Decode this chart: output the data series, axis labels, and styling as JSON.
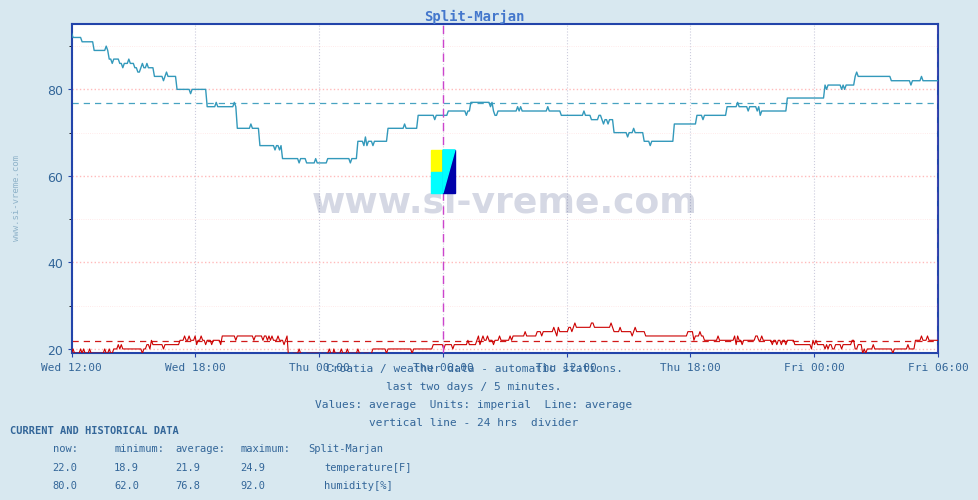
{
  "title": "Split-Marjan",
  "title_color": "#4477cc",
  "background_color": "#d8e8f0",
  "plot_bg_color": "#ffffff",
  "grid_color_major": "#ffaaaa",
  "grid_color_minor": "#ddddff",
  "grid_color_vert": "#ccccdd",
  "border_color": "#2244aa",
  "temp_color": "#cc0000",
  "humidity_color": "#3399bb",
  "temp_avg": 21.9,
  "humidity_avg": 76.8,
  "temp_min": 18.9,
  "temp_max": 24.9,
  "temp_now": 22.0,
  "humidity_min": 62.0,
  "humidity_max": 92.0,
  "humidity_now": 80.0,
  "ylim_min": 19,
  "ylim_max": 95,
  "yticks": [
    20,
    40,
    60,
    80
  ],
  "xlabel_ticks": [
    "Wed 12:00",
    "Wed 18:00",
    "Thu 00:00",
    "Thu 06:00",
    "Thu 12:00",
    "Thu 18:00",
    "Fri 00:00",
    "Fri 06:00"
  ],
  "n_points": 576,
  "watermark_text": "www.si-vreme.com",
  "watermark_color": "#1a2a6a",
  "footer_line1": "Croatia / weather data - automatic stations.",
  "footer_line2": "last two days / 5 minutes.",
  "footer_line3": "Values: average  Units: imperial  Line: average",
  "footer_line4": "vertical line - 24 hrs  divider",
  "footer_color": "#336699",
  "sidebar_color": "#5588aa"
}
